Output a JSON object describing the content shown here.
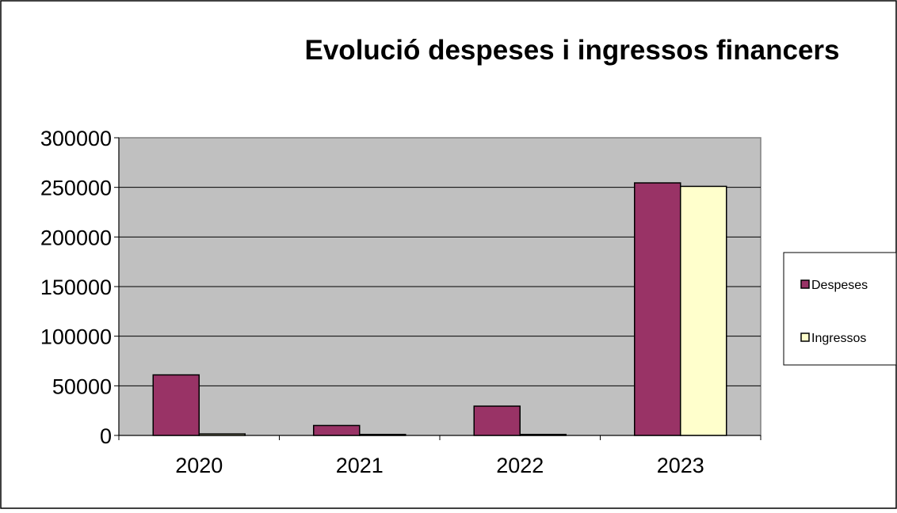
{
  "chart_data": {
    "type": "bar",
    "title": "Evolució despeses i ingressos financers",
    "xlabel": "",
    "ylabel": "",
    "categories": [
      "2020",
      "2021",
      "2022",
      "2023"
    ],
    "series": [
      {
        "name": "Despeses",
        "color": "#993366",
        "values": [
          61000,
          10000,
          29500,
          254500
        ]
      },
      {
        "name": "Ingressos",
        "color": "#FFFFCC",
        "values": [
          1500,
          1000,
          1000,
          251000
        ]
      }
    ],
    "ylim": [
      0,
      300000
    ],
    "yticks": [
      "0",
      "50000",
      "100000",
      "150000",
      "200000",
      "250000",
      "300000"
    ],
    "grid": true,
    "plot_background": "#C0C0C0",
    "legend_position": "right"
  }
}
